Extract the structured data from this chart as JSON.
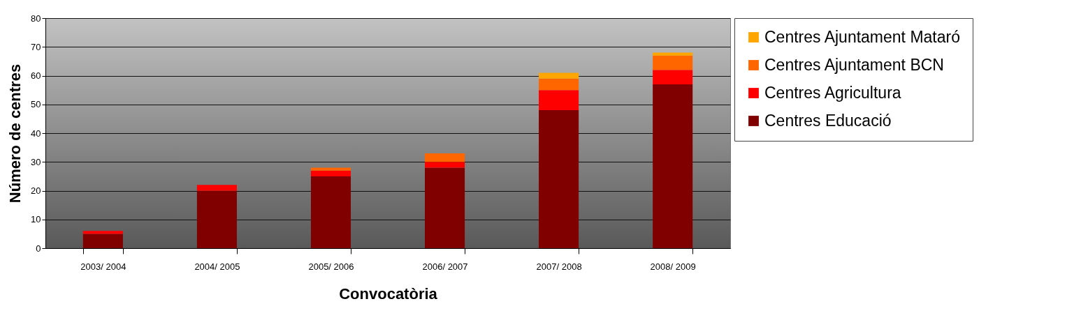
{
  "chart_data": {
    "type": "bar",
    "stacked": true,
    "xlabel": "Convocatòria",
    "ylabel": "Número de centres",
    "categories": [
      "2003/ 2004",
      "2004/ 2005",
      "2005/ 2006",
      "2006/ 2007",
      "2007/ 2008",
      "2008/ 2009"
    ],
    "series": [
      {
        "name": "Centres Educació",
        "color": "#800000",
        "values": [
          5,
          20,
          25,
          28,
          48,
          57
        ]
      },
      {
        "name": "Centres Agricultura",
        "color": "#ff0000",
        "values": [
          1,
          2,
          2,
          2,
          7,
          5
        ]
      },
      {
        "name": "Centres Ajuntament BCN",
        "color": "#ff6600",
        "values": [
          0,
          0,
          1,
          3,
          4,
          5
        ]
      },
      {
        "name": "Centres Ajuntament Mataró",
        "color": "#ffa500",
        "values": [
          0,
          0,
          0,
          0,
          2,
          1
        ]
      }
    ],
    "ylim": [
      0,
      80
    ],
    "yticks": [
      0,
      10,
      20,
      30,
      40,
      50,
      60,
      70,
      80
    ],
    "grid": "y",
    "legend": "right"
  }
}
